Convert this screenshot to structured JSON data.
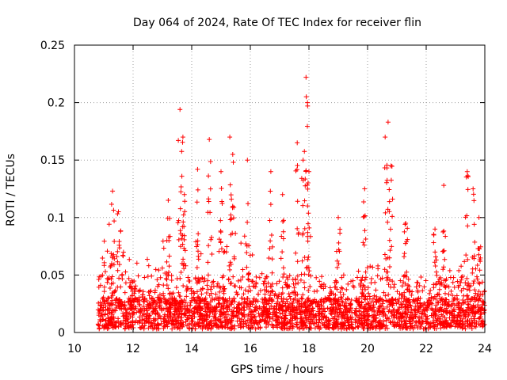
{
  "chart_data": {
    "type": "scatter",
    "title": "Day 064 of 2024, Rate Of TEC Index for receiver flin",
    "xlabel": "GPS time / hours",
    "ylabel": "ROTI / TECUs",
    "xlim": [
      10,
      24
    ],
    "ylim": [
      0,
      0.25
    ],
    "x_ticks": [
      10,
      12,
      14,
      16,
      18,
      20,
      22,
      24
    ],
    "x_tick_labels": [
      "10",
      "12",
      "14",
      "16",
      "18",
      "20",
      "22",
      "24"
    ],
    "y_ticks": [
      0,
      0.05,
      0.1,
      0.15,
      0.2,
      0.25
    ],
    "y_tick_labels": [
      "0",
      "0.05",
      "0.1",
      "0.15",
      "0.2",
      "0.25"
    ],
    "grid": true,
    "marker": "+",
    "color": "#ff0000",
    "data_start_hour": 10.8,
    "data_end_hour": 24.0,
    "background_range": [
      0.003,
      0.05
    ],
    "envelope": [
      [
        10.8,
        0.035
      ],
      [
        11.0,
        0.08
      ],
      [
        11.3,
        0.11
      ],
      [
        11.6,
        0.09
      ],
      [
        12.0,
        0.07
      ],
      [
        12.5,
        0.07
      ],
      [
        13.0,
        0.08
      ],
      [
        13.5,
        0.1
      ],
      [
        14.0,
        0.09
      ],
      [
        14.5,
        0.08
      ],
      [
        15.0,
        0.1
      ],
      [
        15.5,
        0.09
      ],
      [
        16.0,
        0.08
      ],
      [
        16.5,
        0.07
      ],
      [
        17.0,
        0.07
      ],
      [
        17.5,
        0.06
      ],
      [
        18.0,
        0.06
      ],
      [
        18.5,
        0.045
      ],
      [
        19.0,
        0.04
      ],
      [
        19.5,
        0.05
      ],
      [
        20.0,
        0.065
      ],
      [
        20.5,
        0.06
      ],
      [
        21.0,
        0.06
      ],
      [
        21.5,
        0.045
      ],
      [
        22.0,
        0.04
      ],
      [
        22.5,
        0.06
      ],
      [
        23.0,
        0.05
      ],
      [
        23.5,
        0.07
      ],
      [
        24.0,
        0.07
      ]
    ],
    "spikes": [
      {
        "x": 11.3,
        "y": 0.123
      },
      {
        "x": 11.5,
        "y": 0.105
      },
      {
        "x": 13.2,
        "y": 0.115
      },
      {
        "x": 13.6,
        "y": 0.194
      },
      {
        "x": 13.7,
        "y": 0.17
      },
      {
        "x": 13.75,
        "y": 0.12
      },
      {
        "x": 14.2,
        "y": 0.142
      },
      {
        "x": 14.6,
        "y": 0.168
      },
      {
        "x": 15.0,
        "y": 0.14
      },
      {
        "x": 15.3,
        "y": 0.17
      },
      {
        "x": 15.4,
        "y": 0.155
      },
      {
        "x": 15.9,
        "y": 0.15
      },
      {
        "x": 16.7,
        "y": 0.14
      },
      {
        "x": 17.1,
        "y": 0.12
      },
      {
        "x": 17.6,
        "y": 0.165
      },
      {
        "x": 17.8,
        "y": 0.15
      },
      {
        "x": 17.9,
        "y": 0.222
      },
      {
        "x": 17.95,
        "y": 0.2
      },
      {
        "x": 18.0,
        "y": 0.14
      },
      {
        "x": 19.0,
        "y": 0.1
      },
      {
        "x": 19.9,
        "y": 0.125
      },
      {
        "x": 20.6,
        "y": 0.17
      },
      {
        "x": 20.7,
        "y": 0.183
      },
      {
        "x": 20.8,
        "y": 0.145
      },
      {
        "x": 21.3,
        "y": 0.095
      },
      {
        "x": 22.3,
        "y": 0.09
      },
      {
        "x": 22.6,
        "y": 0.128
      },
      {
        "x": 23.4,
        "y": 0.14
      },
      {
        "x": 23.6,
        "y": 0.125
      },
      {
        "x": 23.8,
        "y": 0.1
      }
    ]
  }
}
